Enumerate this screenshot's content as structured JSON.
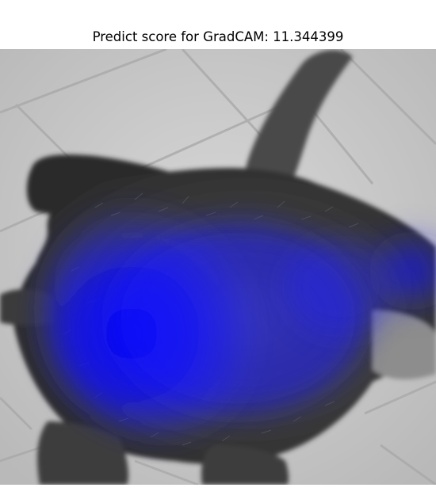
{
  "figure": {
    "title": "Predict score for GradCAM: 11.344399",
    "image_subject": "grayscale photo of a dark fluffy cat lying on a tiled floor",
    "overlay": "GradCAM heatmap",
    "heatmap_color": "#0000ff",
    "floor_color": "#cfcfcf",
    "cat_color": "#3a3a3a"
  }
}
